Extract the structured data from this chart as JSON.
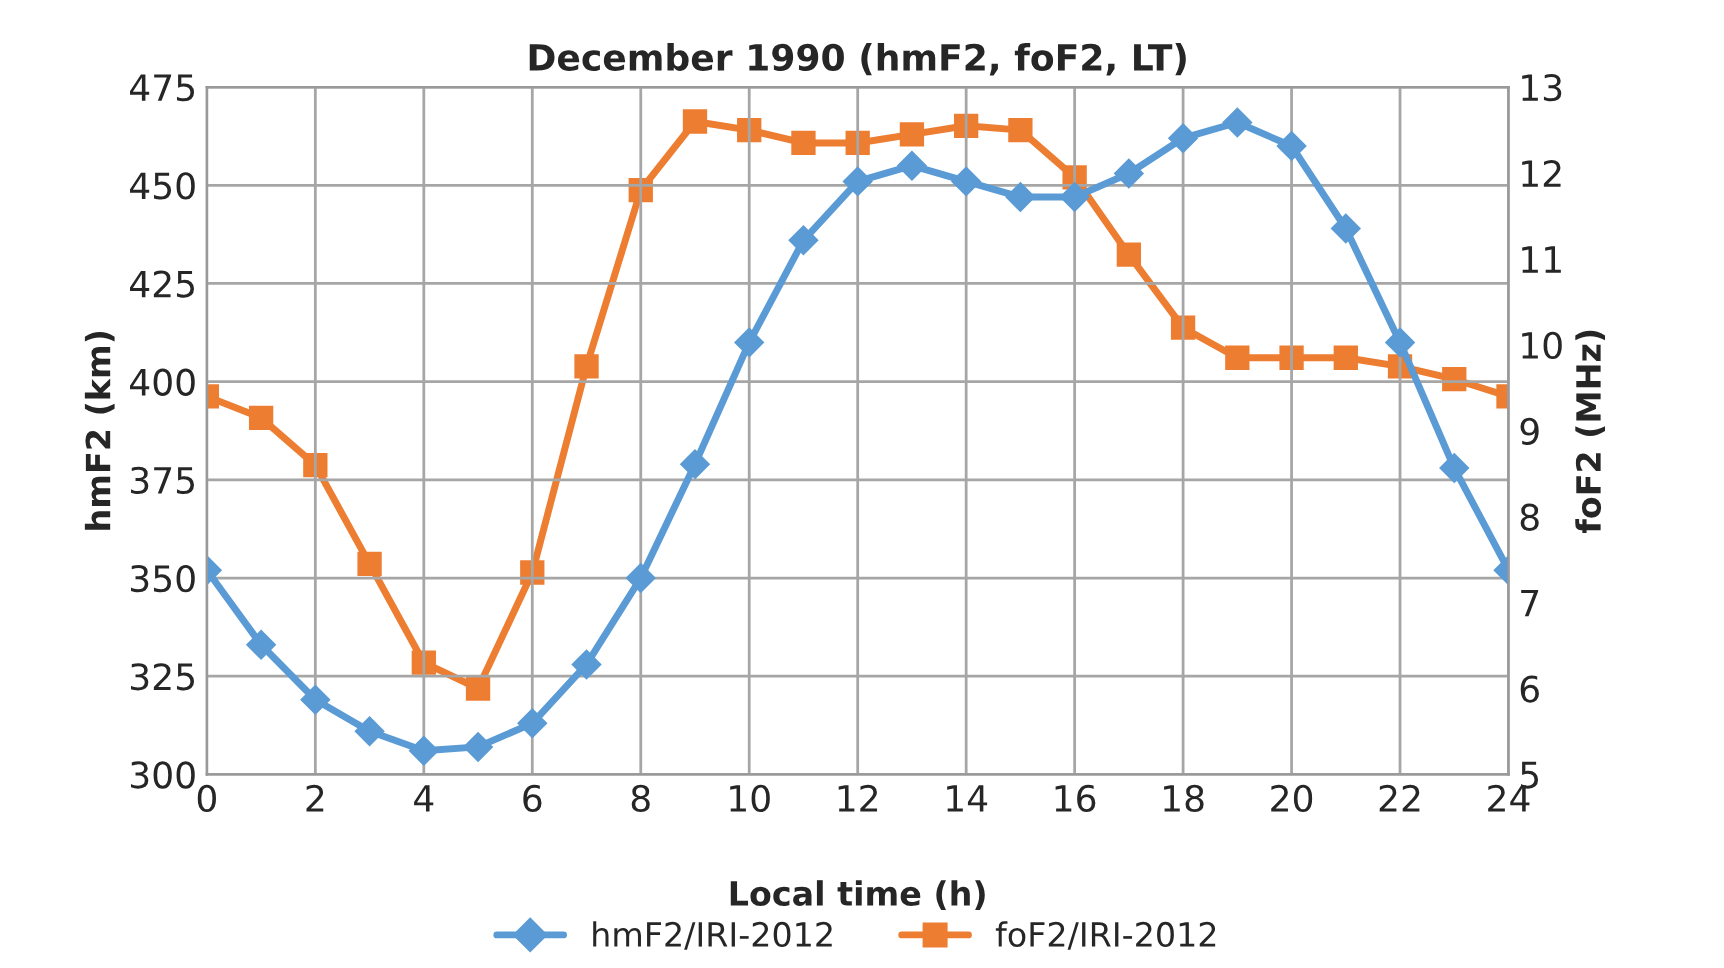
{
  "chart_data": {
    "type": "line",
    "title": "December 1990 (hmF2, foF2, LT)",
    "xlabel": "Local time (h)",
    "ylabel": "hmF2 (km)",
    "y2label": "foF2 (MHz)",
    "x": [
      0,
      1,
      2,
      3,
      4,
      5,
      6,
      7,
      8,
      9,
      10,
      11,
      12,
      13,
      14,
      15,
      16,
      17,
      18,
      19,
      20,
      21,
      22,
      23,
      24
    ],
    "series": [
      {
        "name": "hmF2/IRI-2012",
        "color": "#5b9bd5",
        "marker": "diamond",
        "values": [
          352,
          333,
          319,
          311,
          306,
          307,
          313,
          328,
          350,
          379,
          410,
          436,
          451,
          455,
          451,
          447,
          447,
          453,
          462,
          466,
          460,
          439,
          410,
          378,
          352
        ]
      },
      {
        "name": "foF2/IRI-2012",
        "color": "#ed7d31",
        "marker": "square",
        "axis": "y2",
        "values": [
          9.4,
          9.15,
          8.6,
          7.45,
          6.3,
          6.0,
          7.35,
          9.75,
          11.8,
          12.6,
          12.5,
          12.35,
          12.35,
          12.45,
          12.55,
          12.5,
          11.95,
          11.05,
          10.2,
          9.85,
          9.85,
          9.85,
          9.75,
          9.6,
          9.4
        ]
      }
    ],
    "xlim": [
      0,
      24
    ],
    "xticks": [
      0,
      2,
      4,
      6,
      8,
      10,
      12,
      14,
      16,
      18,
      20,
      22,
      24
    ],
    "ylim": [
      300,
      475
    ],
    "yticks": [
      300,
      325,
      350,
      375,
      400,
      425,
      450,
      475
    ],
    "y2lim": [
      5,
      13
    ],
    "y2ticks": [
      5,
      6,
      7,
      8,
      9,
      10,
      11,
      12,
      13
    ],
    "grid": true,
    "legend": "bottom",
    "line_style": "solid"
  }
}
